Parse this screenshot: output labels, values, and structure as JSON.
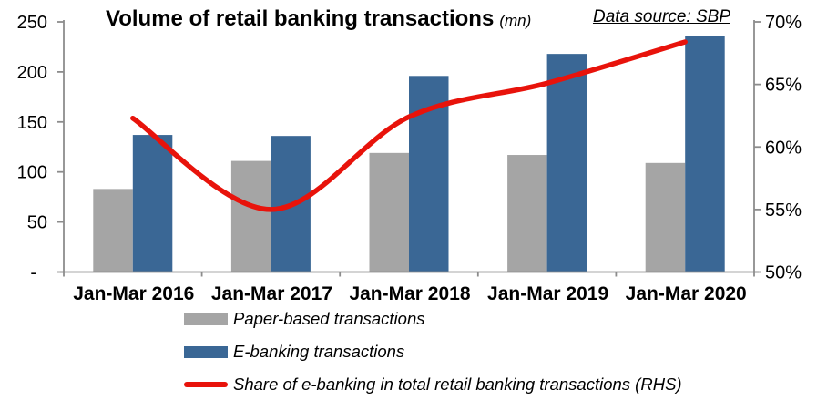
{
  "title": {
    "text": "Volume of retail banking transactions",
    "unit": "(mn)"
  },
  "data_source": {
    "text": "Data source: SBP"
  },
  "colors": {
    "paper": "#A5A5A5",
    "ebanking": "#3A6795",
    "share_line": "#E8130B",
    "axis": "#8C8C8C",
    "text": "#000000",
    "background": "#FFFFFF"
  },
  "chart_data": {
    "type": "combo",
    "subtype": "grouped-bars-with-smoothed-line",
    "title": "Volume of retail banking transactions (mn)",
    "categories": [
      "Jan-Mar 2016",
      "Jan-Mar 2017",
      "Jan-Mar 2018",
      "Jan-Mar 2019",
      "Jan-Mar 2020"
    ],
    "series": [
      {
        "name": "Paper-based transactions",
        "type": "bar",
        "axis": "left",
        "color_key": "paper",
        "values": [
          83,
          111,
          119,
          117,
          109
        ]
      },
      {
        "name": "E-banking transactions",
        "type": "bar",
        "axis": "left",
        "color_key": "ebanking",
        "values": [
          137,
          136,
          196,
          218,
          236
        ]
      },
      {
        "name": "Share of e-banking in total retail banking transactions (RHS)",
        "type": "line",
        "axis": "right",
        "color_key": "share_line",
        "values": [
          62.3,
          55.0,
          62.4,
          65.1,
          68.4
        ]
      }
    ],
    "left_axis": {
      "min": 0,
      "max": 250,
      "tick_values": [
        250,
        200,
        150,
        100,
        50,
        0
      ],
      "tick_labels": [
        "250",
        "200",
        "150",
        "100",
        "50",
        "-"
      ]
    },
    "right_axis": {
      "min": 50,
      "max": 70,
      "tick_values": [
        70,
        65,
        60,
        55,
        50
      ],
      "tick_labels": [
        "70%",
        "65%",
        "60%",
        "55%",
        "50%"
      ]
    },
    "grid": false,
    "legend_position": "bottom-left"
  }
}
